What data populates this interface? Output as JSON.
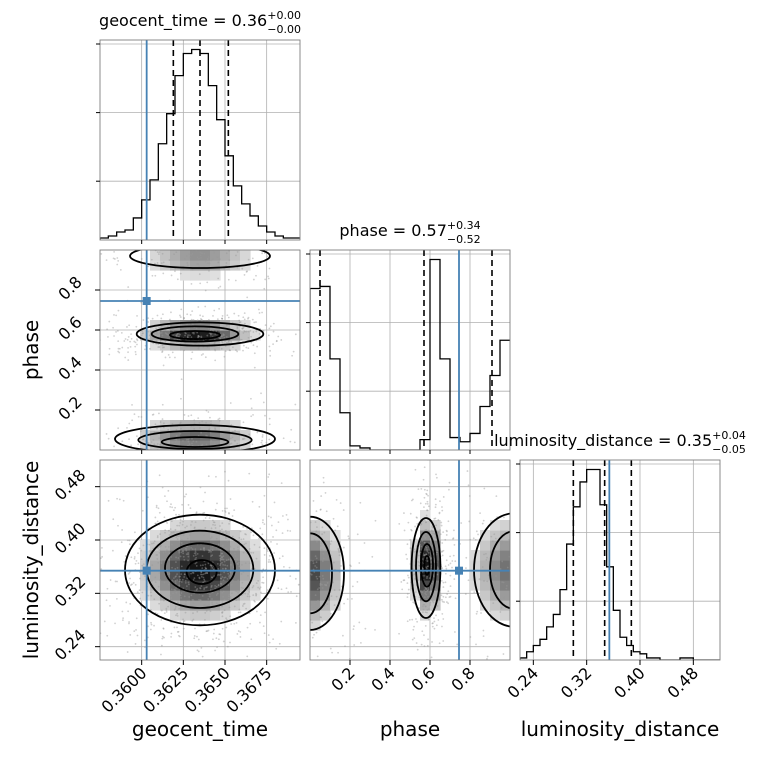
{
  "chart_data": {
    "type": "corner",
    "truth_color": "#4682b4",
    "parameters": [
      {
        "key": "geocent_time",
        "label": "geocent_time",
        "title": {
          "prefix": "geocent_time = 0.36",
          "plus": "+0.00",
          "minus": "−0.00"
        },
        "range": [
          0.3575,
          0.3695
        ],
        "ticks": [
          0.36,
          0.3625,
          0.365,
          0.3675
        ],
        "tick_labels": [
          "0.3600",
          "0.3625",
          "0.3650",
          "0.3675"
        ],
        "quantiles": [
          0.3619,
          0.3635,
          0.3652
        ],
        "truth": 0.3603,
        "hist_bin_width": 0.0005,
        "hist_counts": [
          0.01,
          0.02,
          0.04,
          0.05,
          0.11,
          0.2,
          0.3,
          0.48,
          0.63,
          0.82,
          0.93,
          0.95,
          0.93,
          0.77,
          0.6,
          0.42,
          0.27,
          0.18,
          0.12,
          0.07,
          0.04,
          0.02,
          0.01,
          0.01
        ]
      },
      {
        "key": "phase",
        "label": "phase",
        "title": {
          "prefix": "phase = 0.57",
          "plus": "+0.34",
          "minus": "−0.52"
        },
        "range": [
          0.0,
          1.0
        ],
        "ticks": [
          0.2,
          0.4,
          0.6,
          0.8
        ],
        "tick_labels": [
          "0.2",
          "0.4",
          "0.6",
          "0.8"
        ],
        "quantiles": [
          0.05,
          0.57,
          0.91
        ],
        "truth": 0.745,
        "hist_bin_width": 0.05,
        "hist_counts": [
          0.78,
          0.79,
          0.44,
          0.18,
          0.02,
          0.01,
          0.0,
          0.0,
          0.0,
          0.0,
          0.0,
          0.05,
          0.92,
          0.44,
          0.06,
          0.04,
          0.08,
          0.21,
          0.36,
          0.53
        ]
      },
      {
        "key": "luminosity_distance",
        "label": "luminosity_distance",
        "title": {
          "prefix": "luminosity_distance = 0.35",
          "plus": "+0.04",
          "minus": "−0.05"
        },
        "range": [
          0.22,
          0.52
        ],
        "ticks": [
          0.24,
          0.32,
          0.4,
          0.48
        ],
        "tick_labels": [
          "0.24",
          "0.32",
          "0.40",
          "0.48"
        ],
        "quantiles": [
          0.3,
          0.347,
          0.387
        ],
        "truth": 0.354,
        "hist_bin_width": 0.01,
        "hist_counts": [
          0.01,
          0.04,
          0.07,
          0.1,
          0.16,
          0.22,
          0.34,
          0.56,
          0.74,
          0.86,
          0.92,
          0.92,
          0.75,
          0.45,
          0.24,
          0.11,
          0.07,
          0.04,
          0.03,
          0.01,
          0.01,
          0.0,
          0.0,
          0.0,
          0.01,
          0.01,
          0.0,
          0.0,
          0.0,
          0.0
        ]
      }
    ],
    "pairs": [
      {
        "x": "geocent_time",
        "y": "phase",
        "modes": [
          {
            "cx": 0.3633,
            "cy": 0.58,
            "sx": 0.0016,
            "sy": 0.035,
            "w": 1.0
          },
          {
            "cx": 0.3632,
            "cy": 0.06,
            "sx": 0.0018,
            "sy": 0.05,
            "w": 0.6
          },
          {
            "cx": 0.3635,
            "cy": 0.96,
            "sx": 0.0017,
            "sy": 0.05,
            "w": 0.4
          }
        ],
        "contour_levels": [
          [
            {
              "cx": 0.3635,
              "cy": 0.58,
              "rx": 0.0038,
              "ry": 0.058
            },
            {
              "cx": 0.3632,
              "cy": 0.055,
              "rx": 0.0048,
              "ry": 0.07
            },
            {
              "cx": 0.3635,
              "cy": 0.97,
              "rx": 0.0042,
              "ry": 0.06
            }
          ],
          [
            {
              "cx": 0.3632,
              "cy": 0.58,
              "rx": 0.0026,
              "ry": 0.038
            },
            {
              "cx": 0.3632,
              "cy": 0.05,
              "rx": 0.0034,
              "ry": 0.045
            }
          ],
          [
            {
              "cx": 0.3632,
              "cy": 0.575,
              "rx": 0.0015,
              "ry": 0.02
            },
            {
              "cx": 0.3632,
              "cy": 0.04,
              "rx": 0.002,
              "ry": 0.025
            }
          ]
        ]
      },
      {
        "x": "geocent_time",
        "y": "luminosity_distance",
        "modes": [
          {
            "cx": 0.3635,
            "cy": 0.355,
            "sx": 0.0017,
            "sy": 0.035,
            "w": 1.0
          }
        ],
        "contour_levels": [
          [
            {
              "cx": 0.3635,
              "cy": 0.355,
              "rx": 0.0045,
              "ry": 0.083
            }
          ],
          [
            {
              "cx": 0.3635,
              "cy": 0.356,
              "rx": 0.0032,
              "ry": 0.058
            }
          ],
          [
            {
              "cx": 0.3635,
              "cy": 0.358,
              "rx": 0.0021,
              "ry": 0.037
            }
          ],
          [
            {
              "cx": 0.3636,
              "cy": 0.352,
              "rx": 0.0009,
              "ry": 0.018
            }
          ]
        ]
      },
      {
        "x": "phase",
        "y": "luminosity_distance",
        "modes": [
          {
            "cx": 0.0,
            "cy": 0.35,
            "sx": 0.08,
            "sy": 0.04,
            "w": 0.7
          },
          {
            "cx": 0.59,
            "cy": 0.36,
            "sx": 0.035,
            "sy": 0.035,
            "w": 1.0
          },
          {
            "cx": 1.0,
            "cy": 0.355,
            "sx": 0.1,
            "sy": 0.04,
            "w": 0.5
          }
        ],
        "contour_levels": [
          [
            {
              "cx": 0.0,
              "cy": 0.35,
              "rx": 0.17,
              "ry": 0.085
            },
            {
              "cx": 0.58,
              "cy": 0.358,
              "rx": 0.072,
              "ry": 0.075
            },
            {
              "cx": 1.02,
              "cy": 0.355,
              "rx": 0.2,
              "ry": 0.085
            }
          ],
          [
            {
              "cx": 0.0,
              "cy": 0.35,
              "rx": 0.11,
              "ry": 0.06
            },
            {
              "cx": 0.58,
              "cy": 0.36,
              "rx": 0.05,
              "ry": 0.052
            },
            {
              "cx": 1.02,
              "cy": 0.355,
              "rx": 0.12,
              "ry": 0.058
            }
          ],
          [
            {
              "cx": 0.585,
              "cy": 0.362,
              "rx": 0.03,
              "ry": 0.032
            }
          ],
          [
            {
              "cx": 0.585,
              "cy": 0.362,
              "rx": 0.013,
              "ry": 0.014
            }
          ]
        ]
      }
    ]
  }
}
